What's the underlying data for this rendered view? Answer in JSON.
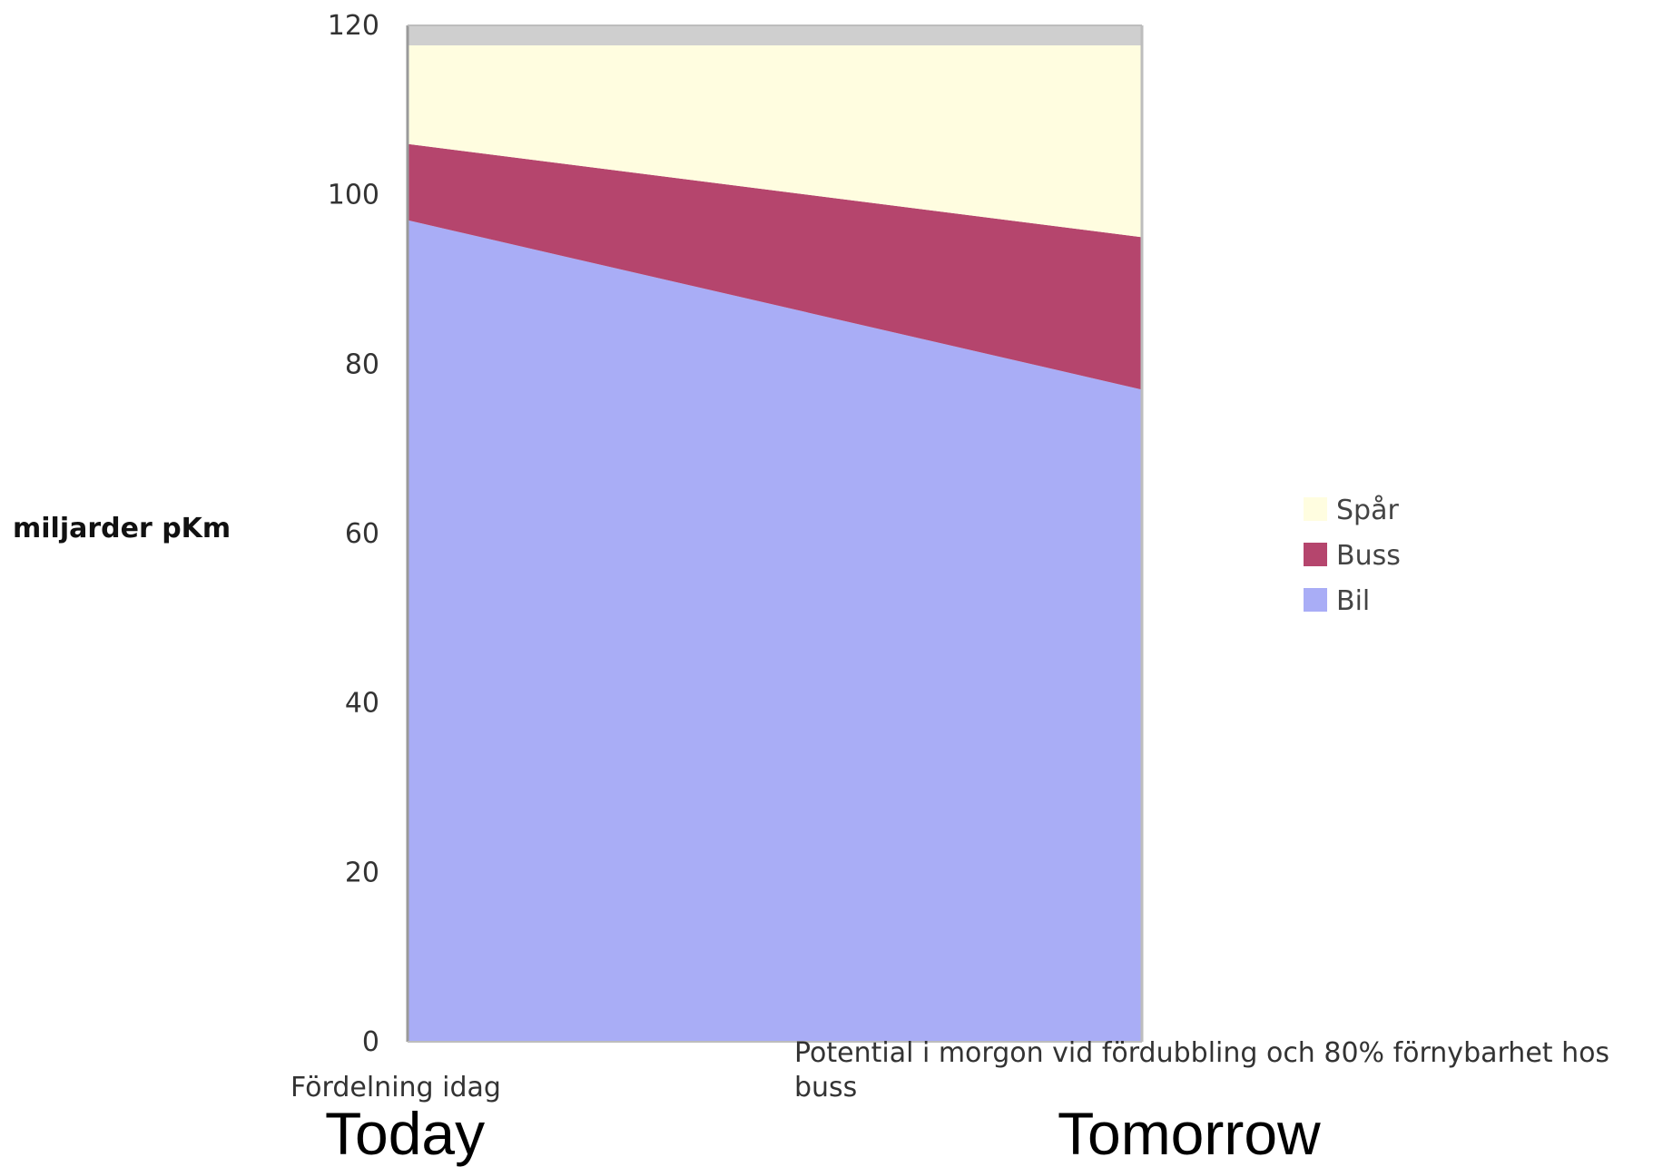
{
  "chart_data": {
    "type": "area",
    "stacked": true,
    "categories": [
      "Fördelning idag",
      "Potential i morgon vid fördubbling och 80% förnybarhet hos buss"
    ],
    "series": [
      {
        "name": "Bil",
        "values": [
          97,
          77
        ]
      },
      {
        "name": "Buss",
        "values": [
          9,
          18
        ]
      },
      {
        "name": "Spår",
        "values": [
          14,
          25
        ]
      }
    ],
    "ylabel": "miljarder pKm",
    "ylim": [
      0,
      120
    ],
    "yticks": [
      0,
      20,
      40,
      60,
      80,
      100,
      120
    ],
    "grid": false,
    "legend_position": "right",
    "legend_order": [
      "Spår",
      "Buss",
      "Bil"
    ],
    "colors": {
      "Bil": "#a9adf6",
      "Buss": "#b5456d",
      "Spår": "#fffde0"
    }
  },
  "captions": {
    "left": "Today",
    "right": "Tomorrow"
  }
}
